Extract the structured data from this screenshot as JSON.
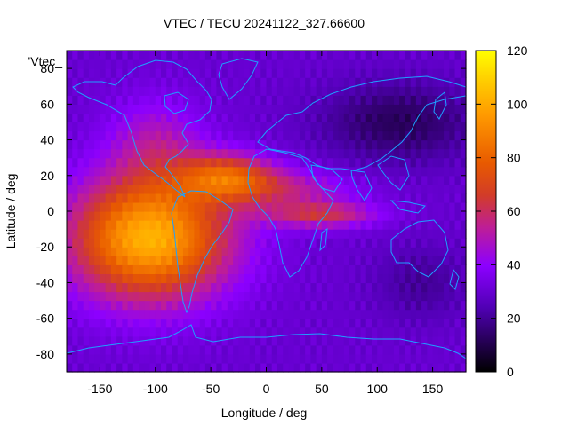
{
  "chart_data": {
    "type": "heatmap",
    "title": "VTEC / TECU 20241122_327.66600",
    "key_label": "'Vtec_",
    "xlabel": "Longitude / deg",
    "ylabel": "Latitude / deg",
    "xlim": [
      -180,
      180
    ],
    "ylim": [
      -90,
      90
    ],
    "x_ticks": [
      -150,
      -100,
      -50,
      0,
      50,
      100,
      150
    ],
    "y_ticks": [
      -80,
      -60,
      -40,
      -20,
      0,
      20,
      40,
      60,
      80
    ],
    "colorbar": {
      "min": 0,
      "max": 120,
      "ticks": [
        0,
        20,
        40,
        60,
        80,
        100,
        120
      ]
    },
    "value_model": {
      "background": 30,
      "regions": [
        {
          "name": "south-america-peak",
          "lon": -105,
          "lat": -15,
          "amp": 72,
          "sigma_lon": 50,
          "sigma_lat": 24
        },
        {
          "name": "caribbean-max",
          "lon": -35,
          "lat": 20,
          "amp": 40,
          "sigma_lon": 30,
          "sigma_lat": 9
        },
        {
          "name": "atlantic-tongue",
          "lon": 15,
          "lat": 12,
          "amp": 22,
          "sigma_lon": 45,
          "sigma_lat": 8
        },
        {
          "name": "indian-ocean-band",
          "lon": 50,
          "lat": -2,
          "amp": 30,
          "sigma_lon": 35,
          "sigma_lat": 5
        },
        {
          "name": "north-america",
          "lon": -100,
          "lat": 38,
          "amp": 18,
          "sigma_lon": 30,
          "sigma_lat": 18
        },
        {
          "name": "northeast-asia-low",
          "lon": 120,
          "lat": 50,
          "amp": -18,
          "sigma_lon": 50,
          "sigma_lat": 16
        },
        {
          "name": "australia-low",
          "lon": 140,
          "lat": -40,
          "amp": -10,
          "sigma_lon": 30,
          "sigma_lat": 15
        }
      ]
    }
  },
  "colors": {
    "map_lines": "#1ea0ff",
    "frame": "#000000"
  }
}
